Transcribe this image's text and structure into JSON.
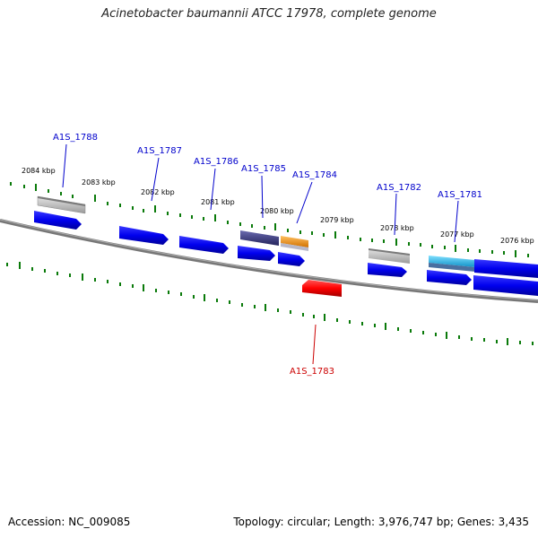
{
  "title": "Acinetobacter baumannii ATCC 17978, complete genome",
  "footer": {
    "accession": "Accession: NC_009085",
    "stats": "Topology: circular; Length: 3,976,747 bp; Genes: 3,435"
  },
  "colors": {
    "gene_blue": "#0000ee",
    "gene_red": "#ff0000",
    "label_blue": "#0000cc",
    "label_red": "#cc0000",
    "tick_green": "#0a7a0a",
    "backbone": "#777777",
    "feature_gray": "#b8b8b8",
    "feature_orange": "#f59a1e",
    "feature_cyan": "#22b2e6",
    "feature_purple": "#3f3f8c"
  },
  "scale_labels": [
    "2084 kbp",
    "2083 kbp",
    "2082 kbp",
    "2081 kbp",
    "2080 kbp",
    "2079 kbp",
    "2078 kbp",
    "2077 kbp",
    "2076 kbp"
  ],
  "gene_labels": [
    "A1S_1788",
    "A1S_1787",
    "A1S_1786",
    "A1S_1785",
    "A1S_1784",
    "A1S_1782",
    "A1S_1781",
    "A1S_1783"
  ]
}
